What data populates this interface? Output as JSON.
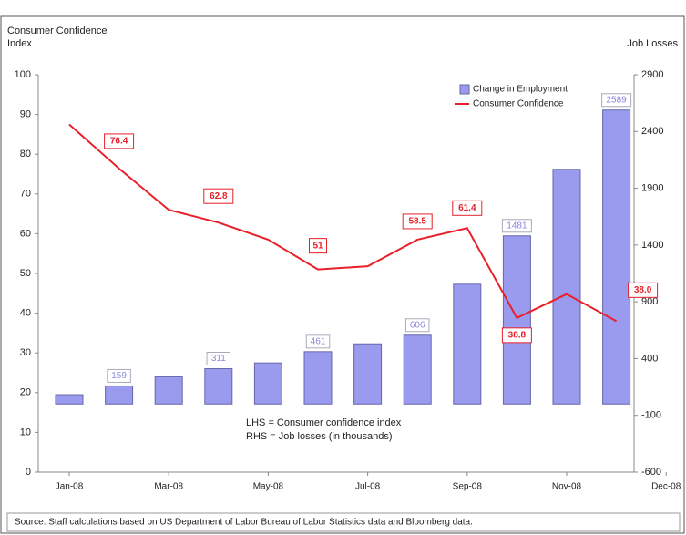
{
  "chart_data": {
    "type": "bar_line",
    "y_label": [
      "Consumer Confidence",
      "Index"
    ],
    "y2_label": "Job Losses",
    "categories": [
      "Jan-08",
      null,
      "Mar-08",
      null,
      "May-08",
      null,
      "Jul-08",
      null,
      "Sep-08",
      null,
      "Nov-08",
      null,
      "Dec-08"
    ],
    "series": [
      {
        "name": "Change in Employment",
        "type": "bar",
        "axis": "y2",
        "color": "#9a9aee",
        "values": [
          82,
          159,
          240,
          311,
          362,
          461,
          530,
          606,
          1055,
          1481,
          2067,
          2589,
          null
        ],
        "value_labels": [
          null,
          "159",
          null,
          "311",
          null,
          "461",
          null,
          "606",
          null,
          "1481",
          null,
          "2589",
          null
        ]
      },
      {
        "name": "Consumer Confidence",
        "type": "line",
        "axis": "y",
        "color": "#e8202a",
        "values": [
          87.5,
          76.4,
          66,
          62.8,
          58.5,
          51,
          51.8,
          58.5,
          61.4,
          38.8,
          44.8,
          38.0,
          null
        ],
        "value_labels": [
          null,
          "76.4",
          null,
          "62.8",
          null,
          "51",
          null,
          "58.5",
          "61.4",
          "38.8",
          null,
          "38.0",
          null
        ]
      }
    ],
    "ylim": [
      0,
      100
    ],
    "yticks": [
      0,
      10,
      20,
      30,
      40,
      50,
      60,
      70,
      80,
      90,
      100
    ],
    "y2lim": [
      -600,
      2900
    ],
    "y2ticks": [
      -600,
      -100,
      400,
      900,
      1400,
      1900,
      2400,
      2900
    ],
    "annotations": [
      "LHS = Consumer confidence index",
      "RHS = Job losses (in thousands)"
    ],
    "source": "Source: Staff calculations  based on US Department of Labor Bureau of Labor Statistics data and Bloomberg data.",
    "legend": "upper right"
  }
}
